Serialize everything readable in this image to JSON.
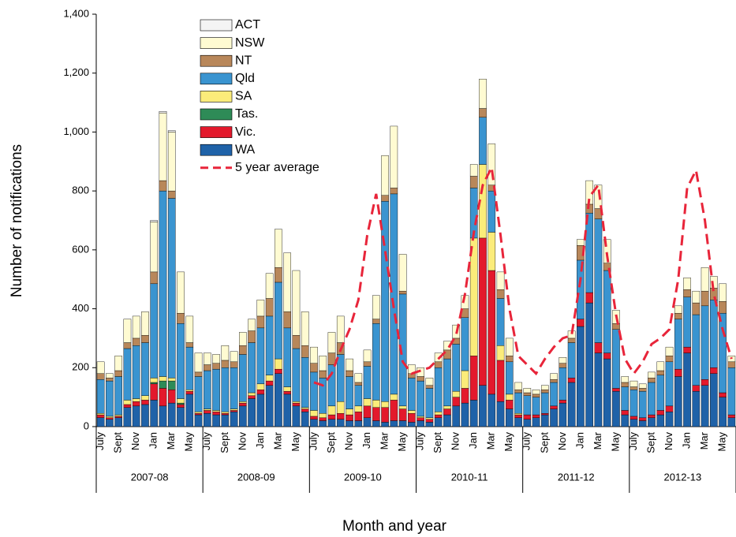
{
  "chart_data": {
    "type": "bar",
    "y_label": "Number of notifications",
    "x_label": "Month and year",
    "categories": [
      "July",
      null,
      "Sept",
      null,
      "Nov",
      null,
      "Jan",
      null,
      "Mar",
      null,
      "May",
      null,
      "July",
      null,
      "Sept",
      null,
      "Nov",
      null,
      "Jan",
      null,
      "Mar",
      null,
      "May",
      null,
      "July",
      null,
      "Sept",
      null,
      "Nov",
      null,
      "Jan",
      null,
      "Mar",
      null,
      "May",
      null,
      "July",
      null,
      "Sept",
      null,
      "Nov",
      null,
      "Jan",
      null,
      "Mar",
      null,
      "May",
      null,
      "July",
      null,
      "Sept",
      null,
      "Nov",
      null,
      "Jan",
      null,
      "Mar",
      null,
      "May",
      null,
      "July",
      null,
      "Sept",
      null,
      "Nov",
      null,
      "Jan",
      null,
      "Mar",
      null,
      "May",
      null
    ],
    "category_groups": [
      "2007-08",
      "2008-09",
      "2009-10",
      "2010-11",
      "2011-12",
      "2012-13"
    ],
    "ylim": [
      0,
      1400
    ],
    "yticks": [
      0,
      200,
      400,
      600,
      800,
      {
        "value": 1000,
        "label": "1,000"
      },
      {
        "value": 1200,
        "label": "1,200"
      },
      {
        "value": 1400,
        "label": "1,400"
      }
    ],
    "stacked": true,
    "series": [
      {
        "name": "ACT",
        "color": "#f4f4f4",
        "values": [
          0,
          0,
          0,
          0,
          0,
          0,
          5,
          5,
          5,
          0,
          0,
          0,
          0,
          0,
          0,
          0,
          0,
          0,
          0,
          0,
          0,
          0,
          0,
          0,
          0,
          0,
          0,
          0,
          0,
          0,
          0,
          0,
          0,
          0,
          0,
          0,
          0,
          0,
          0,
          0,
          0,
          0,
          0,
          0,
          0,
          0,
          0,
          0,
          0,
          0,
          0,
          0,
          0,
          0,
          0,
          0,
          0,
          0,
          0,
          0,
          0,
          0,
          0,
          0,
          0,
          0,
          0,
          0,
          0,
          0,
          0,
          0
        ]
      },
      {
        "name": "NSW",
        "color": "#fffbd2",
        "values": [
          40,
          15,
          50,
          80,
          75,
          80,
          170,
          230,
          200,
          140,
          90,
          65,
          40,
          30,
          50,
          35,
          45,
          40,
          55,
          85,
          130,
          200,
          220,
          115,
          55,
          50,
          70,
          90,
          40,
          30,
          40,
          80,
          135,
          210,
          125,
          30,
          30,
          25,
          30,
          30,
          45,
          45,
          40,
          100,
          140,
          60,
          60,
          25,
          15,
          15,
          15,
          20,
          20,
          25,
          20,
          80,
          80,
          80,
          45,
          20,
          20,
          15,
          20,
          30,
          30,
          25,
          40,
          40,
          80,
          40,
          60,
          20
        ]
      },
      {
        "name": "NT",
        "color": "#b8875a",
        "values": [
          20,
          10,
          20,
          20,
          25,
          25,
          40,
          35,
          25,
          35,
          15,
          15,
          20,
          20,
          25,
          20,
          30,
          40,
          40,
          60,
          50,
          55,
          45,
          40,
          30,
          25,
          40,
          40,
          20,
          10,
          15,
          15,
          20,
          20,
          10,
          15,
          15,
          10,
          20,
          30,
          20,
          30,
          40,
          30,
          20,
          30,
          20,
          10,
          10,
          10,
          10,
          10,
          15,
          15,
          50,
          30,
          35,
          25,
          20,
          15,
          10,
          10,
          15,
          15,
          20,
          20,
          25,
          40,
          50,
          40,
          40,
          20
        ]
      },
      {
        "name": "Qld",
        "color": "#3a94d0",
        "values": [
          115,
          120,
          130,
          175,
          180,
          180,
          320,
          630,
          610,
          255,
          145,
          120,
          130,
          140,
          150,
          140,
          160,
          170,
          190,
          200,
          260,
          200,
          180,
          170,
          130,
          120,
          140,
          160,
          110,
          70,
          110,
          260,
          680,
          680,
          380,
          110,
          120,
          100,
          150,
          160,
          160,
          180,
          170,
          160,
          140,
          160,
          110,
          70,
          65,
          60,
          70,
          80,
          110,
          120,
          200,
          270,
          420,
          280,
          200,
          80,
          90,
          90,
          110,
          120,
          150,
          170,
          170,
          240,
          250,
          230,
          270,
          160
        ]
      },
      {
        "name": "SA",
        "color": "#fbec7a",
        "values": [
          5,
          5,
          5,
          15,
          10,
          15,
          15,
          15,
          10,
          15,
          5,
          5,
          5,
          5,
          5,
          5,
          5,
          10,
          20,
          20,
          35,
          15,
          5,
          5,
          20,
          15,
          30,
          40,
          20,
          20,
          25,
          25,
          20,
          20,
          10,
          10,
          5,
          5,
          10,
          10,
          20,
          60,
          400,
          250,
          130,
          50,
          20,
          5,
          0,
          0,
          0,
          0,
          0,
          0,
          0,
          0,
          0,
          0,
          0,
          0,
          0,
          0,
          0,
          0,
          0,
          0,
          0,
          0,
          0,
          0,
          0,
          0
        ]
      },
      {
        "name": "Tas.",
        "color": "#2e8b57",
        "values": [
          0,
          0,
          0,
          0,
          0,
          0,
          5,
          25,
          30,
          5,
          0,
          0,
          0,
          0,
          0,
          0,
          0,
          0,
          0,
          0,
          0,
          0,
          0,
          0,
          0,
          0,
          0,
          0,
          0,
          0,
          0,
          0,
          0,
          0,
          0,
          0,
          0,
          0,
          0,
          0,
          0,
          0,
          0,
          0,
          0,
          0,
          0,
          0,
          0,
          0,
          0,
          0,
          0,
          0,
          0,
          0,
          0,
          0,
          0,
          0,
          0,
          0,
          0,
          0,
          0,
          0,
          0,
          0,
          0,
          0,
          0,
          0
        ]
      },
      {
        "name": "Vic.",
        "color": "#e3192c",
        "values": [
          10,
          5,
          5,
          10,
          15,
          15,
          55,
          60,
          45,
          10,
          10,
          5,
          10,
          10,
          5,
          5,
          10,
          10,
          15,
          15,
          15,
          10,
          10,
          10,
          10,
          10,
          15,
          20,
          20,
          30,
          40,
          45,
          50,
          70,
          40,
          30,
          10,
          10,
          10,
          20,
          30,
          50,
          150,
          500,
          420,
          140,
          30,
          10,
          15,
          10,
          5,
          10,
          10,
          15,
          25,
          35,
          35,
          20,
          10,
          15,
          10,
          10,
          10,
          15,
          20,
          25,
          20,
          20,
          20,
          20,
          15,
          10
        ]
      },
      {
        "name": "WA",
        "color": "#1f62a8",
        "values": [
          30,
          25,
          30,
          65,
          70,
          75,
          90,
          70,
          80,
          65,
          110,
          40,
          45,
          40,
          40,
          50,
          70,
          95,
          110,
          140,
          180,
          110,
          70,
          50,
          25,
          20,
          25,
          25,
          20,
          20,
          30,
          20,
          15,
          20,
          20,
          15,
          20,
          15,
          30,
          40,
          70,
          80,
          90,
          140,
          110,
          85,
          60,
          30,
          25,
          30,
          40,
          60,
          80,
          150,
          340,
          420,
          250,
          230,
          120,
          40,
          25,
          20,
          30,
          40,
          50,
          170,
          250,
          120,
          140,
          180,
          100,
          30
        ]
      },
      {
        "name": "5 year average",
        "type": "line",
        "color": "#e8253a",
        "values": [
          null,
          null,
          null,
          null,
          null,
          null,
          null,
          null,
          null,
          null,
          null,
          null,
          null,
          null,
          null,
          null,
          null,
          null,
          null,
          null,
          null,
          null,
          null,
          null,
          150,
          140,
          180,
          260,
          330,
          430,
          650,
          790,
          600,
          400,
          220,
          180,
          190,
          200,
          230,
          260,
          310,
          450,
          660,
          820,
          880,
          650,
          400,
          240,
          210,
          180,
          230,
          270,
          300,
          310,
          500,
          780,
          820,
          580,
          380,
          230,
          180,
          220,
          280,
          300,
          330,
          500,
          810,
          870,
          700,
          450,
          330,
          230
        ]
      }
    ]
  }
}
